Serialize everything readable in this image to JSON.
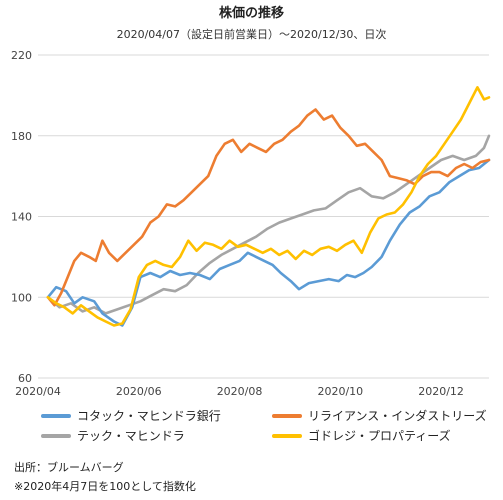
{
  "title": "株価の推移",
  "subtitle": "2020/04/07（設定日前営業日）～2020/12/30、日次",
  "notes": {
    "source": "出所：ブルームバーグ",
    "footnote": "※2020年4月7日を100として指数化"
  },
  "chart_data": {
    "type": "line",
    "title": "株価の推移",
    "subtitle": "2020/04/07（設定日前営業日）～2020/12/30、日次",
    "x_tick_labels": [
      "2020/04",
      "2020/06",
      "2020/08",
      "2020/10",
      "2020/12"
    ],
    "x_range": [
      "2020-04-07",
      "2020-12-30"
    ],
    "ylim": [
      60,
      220
    ],
    "y_ticks": [
      60,
      100,
      140,
      180,
      220
    ],
    "grid": "horizontal",
    "legend_position": "bottom",
    "colors": {
      "kotak": "#5b9bd5",
      "reliance": "#ed7d31",
      "techm": "#a5a5a5",
      "godrej": "#ffc000"
    },
    "series": [
      {
        "name": "コタック・マヒンドラ銀行",
        "key": "kotak",
        "points": [
          [
            "2020-04-07",
            100
          ],
          [
            "2020-04-12",
            105
          ],
          [
            "2020-04-18",
            103
          ],
          [
            "2020-04-23",
            97
          ],
          [
            "2020-04-28",
            100
          ],
          [
            "2020-05-05",
            98
          ],
          [
            "2020-05-10",
            92
          ],
          [
            "2020-05-17",
            88
          ],
          [
            "2020-05-22",
            86
          ],
          [
            "2020-05-28",
            95
          ],
          [
            "2020-06-02",
            110
          ],
          [
            "2020-06-08",
            112
          ],
          [
            "2020-06-14",
            110
          ],
          [
            "2020-06-20",
            113
          ],
          [
            "2020-06-26",
            111
          ],
          [
            "2020-07-02",
            112
          ],
          [
            "2020-07-08",
            111
          ],
          [
            "2020-07-14",
            109
          ],
          [
            "2020-07-20",
            114
          ],
          [
            "2020-07-26",
            116
          ],
          [
            "2020-08-01",
            118
          ],
          [
            "2020-08-06",
            122
          ],
          [
            "2020-08-11",
            120
          ],
          [
            "2020-08-16",
            118
          ],
          [
            "2020-08-21",
            116
          ],
          [
            "2020-08-26",
            112
          ],
          [
            "2020-09-01",
            108
          ],
          [
            "2020-09-06",
            104
          ],
          [
            "2020-09-12",
            107
          ],
          [
            "2020-09-18",
            108
          ],
          [
            "2020-09-24",
            109
          ],
          [
            "2020-09-30",
            108
          ],
          [
            "2020-10-05",
            111
          ],
          [
            "2020-10-10",
            110
          ],
          [
            "2020-10-15",
            112
          ],
          [
            "2020-10-20",
            115
          ],
          [
            "2020-10-26",
            120
          ],
          [
            "2020-10-31",
            128
          ],
          [
            "2020-11-06",
            136
          ],
          [
            "2020-11-12",
            142
          ],
          [
            "2020-11-18",
            145
          ],
          [
            "2020-11-24",
            150
          ],
          [
            "2020-11-30",
            152
          ],
          [
            "2020-12-06",
            157
          ],
          [
            "2020-12-12",
            160
          ],
          [
            "2020-12-18",
            163
          ],
          [
            "2020-12-24",
            164
          ],
          [
            "2020-12-30",
            168
          ]
        ]
      },
      {
        "name": "リライアンス・インダストリーズ",
        "key": "reliance",
        "points": [
          [
            "2020-04-07",
            100
          ],
          [
            "2020-04-11",
            96
          ],
          [
            "2020-04-15",
            102
          ],
          [
            "2020-04-19",
            110
          ],
          [
            "2020-04-23",
            118
          ],
          [
            "2020-04-27",
            122
          ],
          [
            "2020-05-02",
            120
          ],
          [
            "2020-05-06",
            118
          ],
          [
            "2020-05-10",
            128
          ],
          [
            "2020-05-14",
            122
          ],
          [
            "2020-05-19",
            118
          ],
          [
            "2020-05-24",
            122
          ],
          [
            "2020-05-29",
            126
          ],
          [
            "2020-06-03",
            130
          ],
          [
            "2020-06-08",
            137
          ],
          [
            "2020-06-13",
            140
          ],
          [
            "2020-06-18",
            146
          ],
          [
            "2020-06-23",
            145
          ],
          [
            "2020-06-28",
            148
          ],
          [
            "2020-07-03",
            152
          ],
          [
            "2020-07-08",
            156
          ],
          [
            "2020-07-13",
            160
          ],
          [
            "2020-07-18",
            170
          ],
          [
            "2020-07-23",
            176
          ],
          [
            "2020-07-28",
            178
          ],
          [
            "2020-08-02",
            172
          ],
          [
            "2020-08-07",
            176
          ],
          [
            "2020-08-12",
            174
          ],
          [
            "2020-08-17",
            172
          ],
          [
            "2020-08-22",
            176
          ],
          [
            "2020-08-27",
            178
          ],
          [
            "2020-09-01",
            182
          ],
          [
            "2020-09-06",
            185
          ],
          [
            "2020-09-11",
            190
          ],
          [
            "2020-09-16",
            193
          ],
          [
            "2020-09-21",
            188
          ],
          [
            "2020-09-26",
            190
          ],
          [
            "2020-10-01",
            184
          ],
          [
            "2020-10-06",
            180
          ],
          [
            "2020-10-11",
            175
          ],
          [
            "2020-10-16",
            176
          ],
          [
            "2020-10-21",
            172
          ],
          [
            "2020-10-26",
            168
          ],
          [
            "2020-10-31",
            160
          ],
          [
            "2020-11-05",
            159
          ],
          [
            "2020-11-10",
            158
          ],
          [
            "2020-11-15",
            156
          ],
          [
            "2020-11-20",
            160
          ],
          [
            "2020-11-25",
            162
          ],
          [
            "2020-11-30",
            162
          ],
          [
            "2020-12-05",
            160
          ],
          [
            "2020-12-10",
            164
          ],
          [
            "2020-12-15",
            166
          ],
          [
            "2020-12-20",
            164
          ],
          [
            "2020-12-25",
            167
          ],
          [
            "2020-12-30",
            168
          ]
        ]
      },
      {
        "name": "テック・マヒンドラ",
        "key": "techm",
        "points": [
          [
            "2020-04-07",
            100
          ],
          [
            "2020-04-14",
            95
          ],
          [
            "2020-04-21",
            97
          ],
          [
            "2020-04-28",
            93
          ],
          [
            "2020-05-05",
            95
          ],
          [
            "2020-05-12",
            92
          ],
          [
            "2020-05-19",
            94
          ],
          [
            "2020-05-26",
            96
          ],
          [
            "2020-06-02",
            98
          ],
          [
            "2020-06-09",
            101
          ],
          [
            "2020-06-16",
            104
          ],
          [
            "2020-06-23",
            103
          ],
          [
            "2020-06-30",
            106
          ],
          [
            "2020-07-07",
            112
          ],
          [
            "2020-07-14",
            117
          ],
          [
            "2020-07-21",
            121
          ],
          [
            "2020-07-28",
            124
          ],
          [
            "2020-08-04",
            127
          ],
          [
            "2020-08-11",
            130
          ],
          [
            "2020-08-18",
            134
          ],
          [
            "2020-08-25",
            137
          ],
          [
            "2020-09-01",
            139
          ],
          [
            "2020-09-08",
            141
          ],
          [
            "2020-09-15",
            143
          ],
          [
            "2020-09-22",
            144
          ],
          [
            "2020-09-29",
            148
          ],
          [
            "2020-10-06",
            152
          ],
          [
            "2020-10-13",
            154
          ],
          [
            "2020-10-20",
            150
          ],
          [
            "2020-10-27",
            149
          ],
          [
            "2020-11-03",
            152
          ],
          [
            "2020-11-10",
            156
          ],
          [
            "2020-11-17",
            160
          ],
          [
            "2020-11-24",
            164
          ],
          [
            "2020-12-01",
            168
          ],
          [
            "2020-12-08",
            170
          ],
          [
            "2020-12-15",
            168
          ],
          [
            "2020-12-22",
            170
          ],
          [
            "2020-12-27",
            174
          ],
          [
            "2020-12-30",
            180
          ]
        ]
      },
      {
        "name": "ゴドレジ・プロパティーズ",
        "key": "godrej",
        "points": [
          [
            "2020-04-07",
            100
          ],
          [
            "2020-04-12",
            97
          ],
          [
            "2020-04-17",
            95
          ],
          [
            "2020-04-22",
            92
          ],
          [
            "2020-04-27",
            96
          ],
          [
            "2020-05-02",
            93
          ],
          [
            "2020-05-07",
            90
          ],
          [
            "2020-05-12",
            88
          ],
          [
            "2020-05-17",
            86
          ],
          [
            "2020-05-22",
            87
          ],
          [
            "2020-05-27",
            94
          ],
          [
            "2020-06-01",
            110
          ],
          [
            "2020-06-06",
            116
          ],
          [
            "2020-06-11",
            118
          ],
          [
            "2020-06-16",
            116
          ],
          [
            "2020-06-21",
            115
          ],
          [
            "2020-06-26",
            120
          ],
          [
            "2020-07-01",
            128
          ],
          [
            "2020-07-06",
            123
          ],
          [
            "2020-07-11",
            127
          ],
          [
            "2020-07-16",
            126
          ],
          [
            "2020-07-21",
            124
          ],
          [
            "2020-07-26",
            128
          ],
          [
            "2020-07-31",
            125
          ],
          [
            "2020-08-05",
            126
          ],
          [
            "2020-08-10",
            124
          ],
          [
            "2020-08-15",
            122
          ],
          [
            "2020-08-20",
            124
          ],
          [
            "2020-08-25",
            121
          ],
          [
            "2020-08-30",
            123
          ],
          [
            "2020-09-04",
            119
          ],
          [
            "2020-09-09",
            123
          ],
          [
            "2020-09-14",
            121
          ],
          [
            "2020-09-19",
            124
          ],
          [
            "2020-09-24",
            125
          ],
          [
            "2020-09-29",
            123
          ],
          [
            "2020-10-04",
            126
          ],
          [
            "2020-10-09",
            128
          ],
          [
            "2020-10-14",
            122
          ],
          [
            "2020-10-19",
            132
          ],
          [
            "2020-10-24",
            139
          ],
          [
            "2020-10-29",
            141
          ],
          [
            "2020-11-03",
            142
          ],
          [
            "2020-11-08",
            146
          ],
          [
            "2020-11-13",
            152
          ],
          [
            "2020-11-18",
            160
          ],
          [
            "2020-11-23",
            166
          ],
          [
            "2020-11-28",
            170
          ],
          [
            "2020-12-03",
            176
          ],
          [
            "2020-12-08",
            182
          ],
          [
            "2020-12-13",
            188
          ],
          [
            "2020-12-18",
            196
          ],
          [
            "2020-12-23",
            204
          ],
          [
            "2020-12-27",
            198
          ],
          [
            "2020-12-30",
            199
          ]
        ]
      }
    ]
  }
}
